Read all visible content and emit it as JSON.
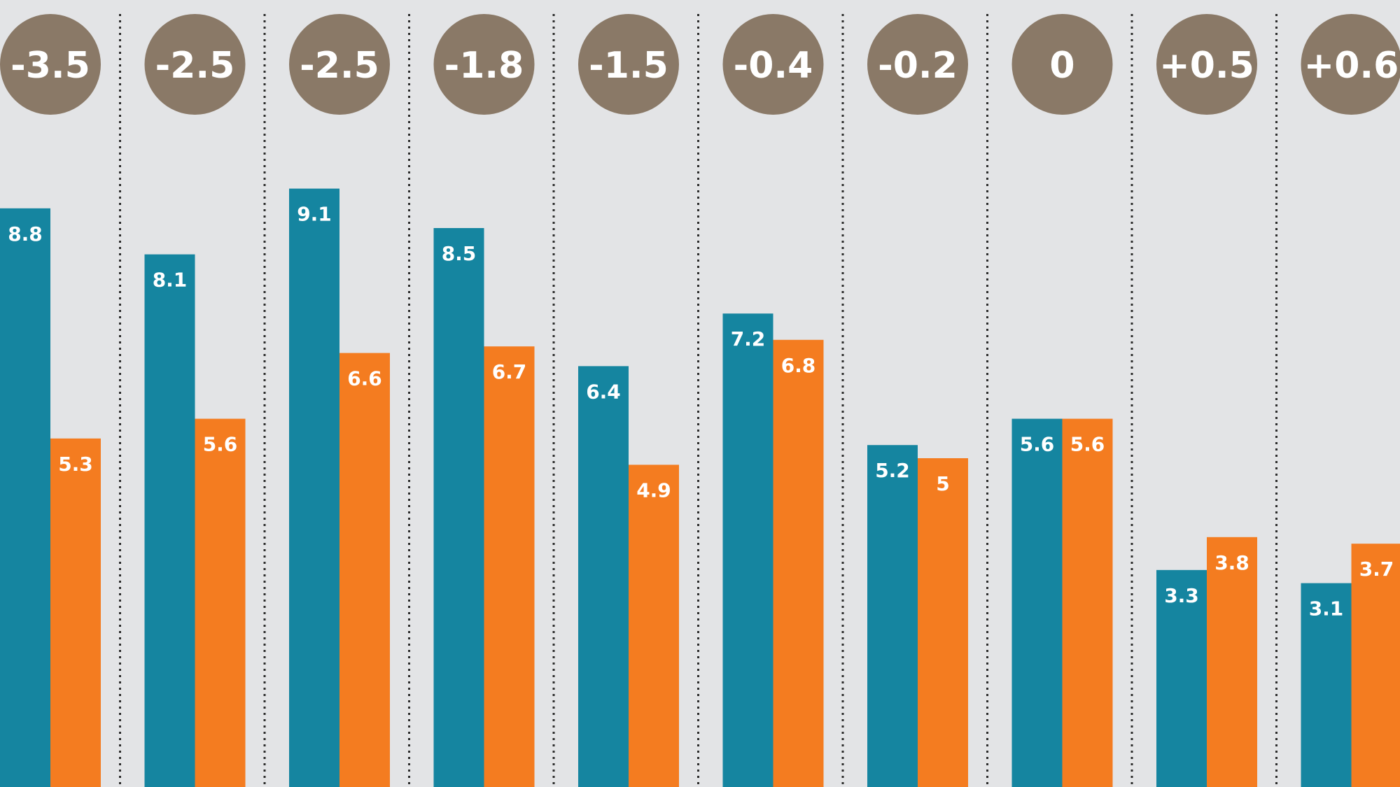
{
  "chart_data": {
    "type": "bar",
    "title": "",
    "xlabel": "",
    "ylabel": "",
    "ylim": [
      0,
      10
    ],
    "grid": false,
    "legend": "none",
    "categories": [
      "-3.5",
      "-2.5",
      "-2.5",
      "-1.8",
      "-1.5",
      "-0.4",
      "-0.2",
      "0",
      "+0.5",
      "+0.6"
    ],
    "series": [
      {
        "color": "#1585a0",
        "values": [
          8.8,
          8.1,
          9.1,
          8.5,
          6.4,
          7.2,
          5.2,
          5.6,
          3.3,
          3.1
        ]
      },
      {
        "color": "#f47c20",
        "values": [
          5.3,
          5.6,
          6.6,
          6.7,
          4.9,
          6.8,
          5,
          5.6,
          3.8,
          3.7
        ]
      }
    ],
    "difference_badges": [
      "-3.5",
      "-2.5",
      "-2.5",
      "-1.8",
      "-1.5",
      "-0.4",
      "-0.2",
      "0",
      "+0.5",
      "+0.6"
    ]
  },
  "colors": {
    "background": "#e3e4e6",
    "badge": "#8a7967",
    "divider": "#2b2b2b",
    "label": "#ffffff"
  }
}
